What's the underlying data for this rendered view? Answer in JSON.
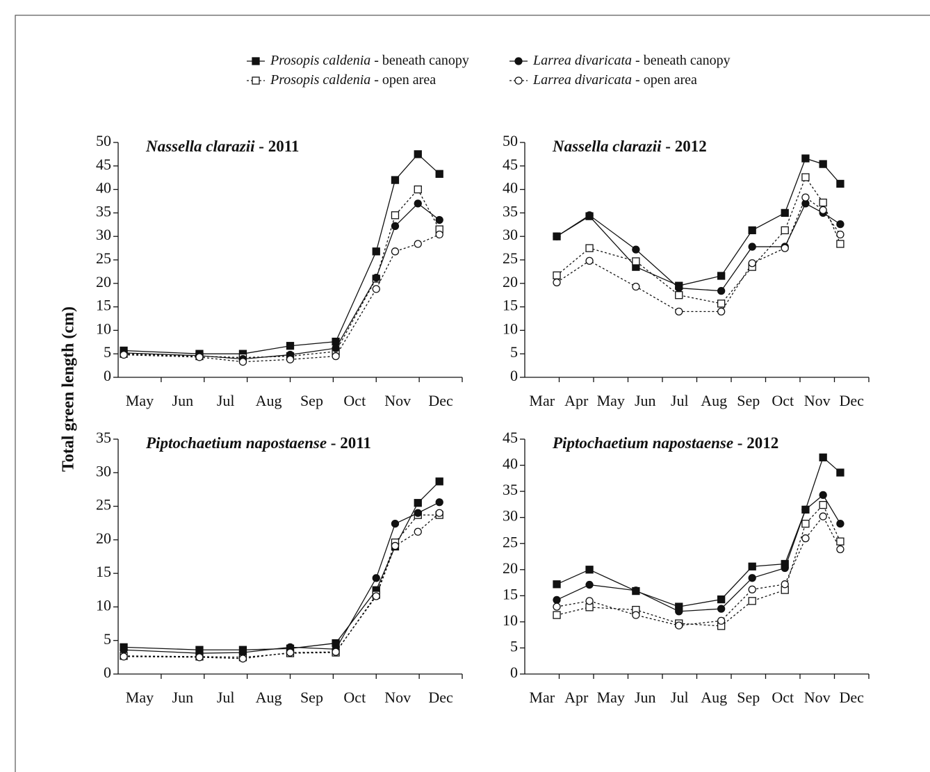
{
  "ylabel": "Total green length (cm)",
  "chart_data": [
    {
      "type": "line",
      "title": "Nassella clarazii - 2011",
      "categories": [
        "May",
        "Jun",
        "Jul",
        "Aug",
        "Sep",
        "Oct",
        "Nov",
        "Dec"
      ],
      "xlim": [
        0,
        8
      ],
      "ylim": [
        0,
        50
      ],
      "yticks": [
        0,
        5,
        10,
        15,
        20,
        25,
        30,
        35,
        40,
        45,
        50
      ],
      "x": [
        0.13,
        1.89,
        2.9,
        4.0,
        5.06,
        6.0,
        6.44,
        6.97,
        7.47
      ],
      "series": [
        {
          "name": "Prosopis caldenia - beneath canopy",
          "color": "#111111",
          "marker": "square",
          "filled": true,
          "linestyle": "solid",
          "values": [
            5.7,
            5.0,
            5.0,
            6.7,
            7.6,
            26.8,
            42,
            47.5,
            43.3
          ]
        },
        {
          "name": "Prosopis caldenia - open area",
          "color": "#111111",
          "marker": "square",
          "filled": false,
          "linestyle": "dotted",
          "values": [
            5.0,
            4.5,
            4.2,
            4.5,
            5.5,
            21,
            34.5,
            40,
            31.5
          ]
        },
        {
          "name": "Larrea divaricata - beneath canopy",
          "color": "#111111",
          "marker": "circle",
          "filled": true,
          "linestyle": "solid",
          "values": [
            5.2,
            4.6,
            3.9,
            4.8,
            6.2,
            21.2,
            32.2,
            37,
            33.5
          ]
        },
        {
          "name": "Larrea divaricata - open area",
          "color": "#111111",
          "marker": "circle",
          "filled": false,
          "linestyle": "dotted",
          "values": [
            4.8,
            4.3,
            3.3,
            3.8,
            4.5,
            18.8,
            26.8,
            28.4,
            30.4
          ]
        }
      ]
    },
    {
      "type": "line",
      "title": "Nassella clarazii - 2012",
      "categories": [
        "Mar",
        "Apr",
        "May",
        "Jun",
        "Jul",
        "Aug",
        "Sep",
        "Oct",
        "Nov",
        "Dec"
      ],
      "xlim": [
        0,
        10
      ],
      "ylim": [
        0,
        50
      ],
      "yticks": [
        0,
        5,
        10,
        15,
        20,
        25,
        30,
        35,
        40,
        45,
        50
      ],
      "x": [
        0.93,
        1.88,
        3.23,
        4.48,
        5.71,
        6.61,
        7.56,
        8.16,
        8.67,
        9.17
      ],
      "series": [
        {
          "name": "Prosopis caldenia - beneath canopy",
          "color": "#111111",
          "marker": "square",
          "filled": true,
          "linestyle": "solid",
          "values": [
            30,
            34.3,
            23.5,
            19.5,
            21.6,
            31.3,
            35,
            46.6,
            45.4,
            41.2
          ]
        },
        {
          "name": "Prosopis caldenia - open area",
          "color": "#111111",
          "marker": "square",
          "filled": false,
          "linestyle": "dotted",
          "values": [
            21.7,
            27.5,
            24.7,
            17.5,
            15.7,
            23.5,
            31.3,
            42.6,
            37.2,
            28.4
          ]
        },
        {
          "name": "Larrea divaricata - beneath canopy",
          "color": "#111111",
          "marker": "circle",
          "filled": true,
          "linestyle": "solid",
          "values": [
            30,
            34.5,
            27.2,
            19,
            18.4,
            27.8,
            27.8,
            37,
            35,
            32.6
          ]
        },
        {
          "name": "Larrea divaricata - open area",
          "color": "#111111",
          "marker": "circle",
          "filled": false,
          "linestyle": "dotted",
          "values": [
            20.2,
            24.8,
            19.3,
            14,
            14,
            24.3,
            27.5,
            38.3,
            35.6,
            30.4
          ]
        }
      ]
    },
    {
      "type": "line",
      "title": "Piptochaetium napostaense - 2011",
      "categories": [
        "May",
        "Jun",
        "Jul",
        "Aug",
        "Sep",
        "Oct",
        "Nov",
        "Dec"
      ],
      "xlim": [
        0,
        8
      ],
      "ylim": [
        0,
        35
      ],
      "yticks": [
        0,
        5,
        10,
        15,
        20,
        25,
        30,
        35
      ],
      "x": [
        0.13,
        1.89,
        2.9,
        4.0,
        5.06,
        6.0,
        6.44,
        6.97,
        7.47
      ],
      "series": [
        {
          "name": "Prosopis caldenia - beneath canopy",
          "color": "#111111",
          "marker": "square",
          "filled": true,
          "linestyle": "solid",
          "values": [
            4.0,
            3.6,
            3.6,
            3.8,
            4.6,
            12.5,
            19,
            25.5,
            28.7
          ]
        },
        {
          "name": "Prosopis caldenia - open area",
          "color": "#111111",
          "marker": "square",
          "filled": false,
          "linestyle": "dotted",
          "values": [
            2.7,
            2.6,
            2.5,
            3.1,
            3.2,
            11.8,
            19.6,
            23.7,
            23.7
          ]
        },
        {
          "name": "Larrea divaricata - beneath canopy",
          "color": "#111111",
          "marker": "circle",
          "filled": true,
          "linestyle": "solid",
          "values": [
            3.6,
            3.1,
            3.2,
            4.0,
            3.7,
            14.3,
            22.4,
            24,
            25.6
          ]
        },
        {
          "name": "Larrea divaricata - open area",
          "color": "#111111",
          "marker": "circle",
          "filled": false,
          "linestyle": "dotted",
          "values": [
            2.6,
            2.5,
            2.3,
            3.2,
            3.3,
            11.6,
            19.1,
            21.2,
            24.0
          ]
        }
      ]
    },
    {
      "type": "line",
      "title": "Piptochaetium napostaense - 2012",
      "categories": [
        "Mar",
        "Apr",
        "May",
        "Jun",
        "Jul",
        "Aug",
        "Sep",
        "Oct",
        "Nov",
        "Dec"
      ],
      "xlim": [
        0,
        10
      ],
      "ylim": [
        0,
        45
      ],
      "yticks": [
        0,
        5,
        10,
        15,
        20,
        25,
        30,
        35,
        40,
        45
      ],
      "x": [
        0.93,
        1.88,
        3.23,
        4.48,
        5.71,
        6.61,
        7.56,
        8.16,
        8.67,
        9.17
      ],
      "series": [
        {
          "name": "Prosopis caldenia - beneath canopy",
          "color": "#111111",
          "marker": "square",
          "filled": true,
          "linestyle": "solid",
          "values": [
            17.2,
            20,
            15.9,
            12.9,
            14.3,
            20.6,
            21.1,
            31.5,
            41.5,
            38.6
          ]
        },
        {
          "name": "Prosopis caldenia - open area",
          "color": "#111111",
          "marker": "square",
          "filled": false,
          "linestyle": "dotted",
          "values": [
            11.3,
            12.8,
            12.3,
            9.7,
            9.2,
            14,
            16.1,
            28.8,
            32.4,
            25.4
          ]
        },
        {
          "name": "Larrea divaricata - beneath canopy",
          "color": "#111111",
          "marker": "circle",
          "filled": true,
          "linestyle": "solid",
          "values": [
            14.2,
            17.1,
            16,
            12,
            12.5,
            18.4,
            20.3,
            31.5,
            34.3,
            28.8
          ]
        },
        {
          "name": "Larrea divaricata - open area",
          "color": "#111111",
          "marker": "circle",
          "filled": false,
          "linestyle": "dotted",
          "values": [
            12.9,
            14,
            11.3,
            9.3,
            10.2,
            16.2,
            17.2,
            26,
            30.2,
            23.9
          ]
        }
      ]
    }
  ]
}
